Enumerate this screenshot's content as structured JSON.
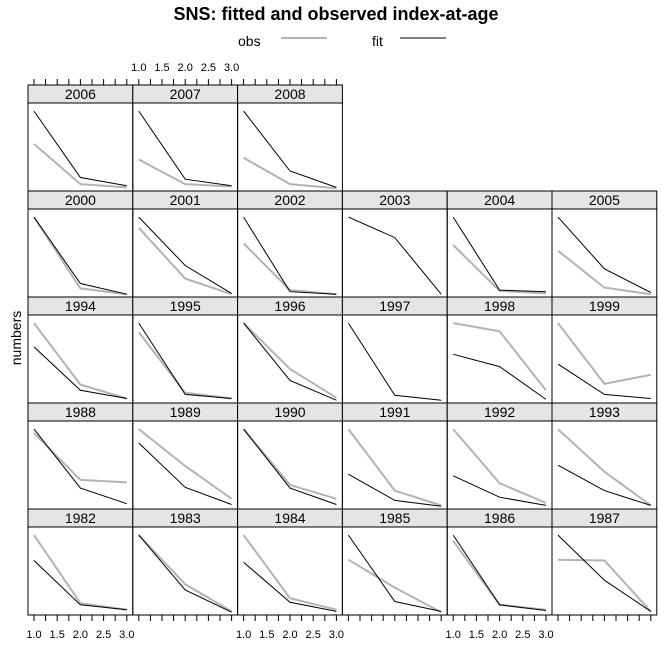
{
  "title": "SNS: fitted and observed index-at-age",
  "ylabel": "numbers",
  "legend": {
    "obs": "obs",
    "fit": "fit"
  },
  "colors": {
    "obs": "#b3b3b3",
    "fit": "#000000",
    "strip": "#e5e5e5"
  },
  "chart_data": {
    "type": "line",
    "layout": "lattice panels by year, 6 columns x 5 rows",
    "x_ticks": [
      "1.0",
      "1.5",
      "2.0",
      "2.5",
      "3.0"
    ],
    "xlim": [
      1,
      3
    ],
    "series_names": [
      "obs",
      "fit"
    ],
    "panels": [
      {
        "year": "1982",
        "col": 0,
        "row": 0,
        "obs": [
          0.95,
          0.12,
          0.04
        ],
        "fit": [
          0.64,
          0.1,
          0.04
        ]
      },
      {
        "year": "1983",
        "col": 1,
        "row": 0,
        "obs": [
          0.95,
          0.35,
          0.02
        ],
        "fit": [
          0.95,
          0.28,
          0.01
        ]
      },
      {
        "year": "1984",
        "col": 2,
        "row": 0,
        "obs": [
          0.95,
          0.18,
          0.04
        ],
        "fit": [
          0.62,
          0.13,
          0.02
        ]
      },
      {
        "year": "1985",
        "col": 3,
        "row": 0,
        "obs": [
          0.65,
          0.31,
          0.01
        ],
        "fit": [
          0.95,
          0.14,
          0.02
        ]
      },
      {
        "year": "1986",
        "col": 4,
        "row": 0,
        "obs": [
          0.88,
          0.1,
          0.04
        ],
        "fit": [
          0.95,
          0.1,
          0.03
        ]
      },
      {
        "year": "1987",
        "col": 5,
        "row": 0,
        "obs": [
          0.65,
          0.64,
          0.02
        ],
        "fit": [
          0.95,
          0.4,
          0.02
        ]
      },
      {
        "year": "1988",
        "col": 0,
        "row": 1,
        "obs": [
          0.9,
          0.33,
          0.3
        ],
        "fit": [
          0.95,
          0.23,
          0.04
        ]
      },
      {
        "year": "1989",
        "col": 1,
        "row": 1,
        "obs": [
          0.95,
          0.5,
          0.1
        ],
        "fit": [
          0.78,
          0.24,
          0.03
        ]
      },
      {
        "year": "1990",
        "col": 2,
        "row": 1,
        "obs": [
          0.95,
          0.27,
          0.1
        ],
        "fit": [
          0.95,
          0.23,
          0.03
        ]
      },
      {
        "year": "1991",
        "col": 3,
        "row": 1,
        "obs": [
          0.95,
          0.2,
          0.02
        ],
        "fit": [
          0.4,
          0.08,
          0.01
        ]
      },
      {
        "year": "1992",
        "col": 4,
        "row": 1,
        "obs": [
          0.95,
          0.29,
          0.05
        ],
        "fit": [
          0.38,
          0.12,
          0.02
        ]
      },
      {
        "year": "1993",
        "col": 5,
        "row": 1,
        "obs": [
          0.95,
          0.43,
          0.02
        ],
        "fit": [
          0.51,
          0.2,
          0.02
        ]
      },
      {
        "year": "1994",
        "col": 0,
        "row": 2,
        "obs": [
          0.95,
          0.2,
          0.03
        ],
        "fit": [
          0.66,
          0.13,
          0.03
        ]
      },
      {
        "year": "1995",
        "col": 1,
        "row": 2,
        "obs": [
          0.84,
          0.1,
          0.03
        ],
        "fit": [
          0.95,
          0.08,
          0.03
        ]
      },
      {
        "year": "1996",
        "col": 2,
        "row": 2,
        "obs": [
          0.95,
          0.39,
          0.04
        ],
        "fit": [
          0.95,
          0.25,
          0.01
        ]
      },
      {
        "year": "1997",
        "col": 3,
        "row": 2,
        "obs": [
          null,
          null,
          null
        ],
        "fit": [
          0.95,
          0.07,
          0.01
        ]
      },
      {
        "year": "1998",
        "col": 4,
        "row": 2,
        "obs": [
          0.95,
          0.85,
          0.13
        ],
        "fit": [
          0.57,
          0.42,
          0.02
        ]
      },
      {
        "year": "1999",
        "col": 5,
        "row": 2,
        "obs": [
          0.95,
          0.21,
          0.32
        ],
        "fit": [
          0.45,
          0.08,
          0.03
        ]
      },
      {
        "year": "2000",
        "col": 0,
        "row": 3,
        "obs": [
          0.95,
          0.08,
          0.01
        ],
        "fit": [
          0.95,
          0.14,
          0.01
        ]
      },
      {
        "year": "2001",
        "col": 1,
        "row": 3,
        "obs": [
          0.82,
          0.2,
          0.01
        ],
        "fit": [
          0.95,
          0.36,
          0.02
        ]
      },
      {
        "year": "2002",
        "col": 2,
        "row": 3,
        "obs": [
          0.63,
          0.06,
          0.01
        ],
        "fit": [
          0.95,
          0.04,
          0.01
        ]
      },
      {
        "year": "2003",
        "col": 3,
        "row": 3,
        "obs": [
          null,
          null,
          null
        ],
        "fit": [
          0.95,
          0.7,
          0.01
        ]
      },
      {
        "year": "2004",
        "col": 4,
        "row": 3,
        "obs": [
          0.61,
          0.05,
          0.02
        ],
        "fit": [
          0.95,
          0.06,
          0.04
        ]
      },
      {
        "year": "2005",
        "col": 5,
        "row": 3,
        "obs": [
          0.54,
          0.09,
          0.01
        ],
        "fit": [
          0.95,
          0.32,
          0.03
        ]
      },
      {
        "year": "2006",
        "col": 0,
        "row": 4,
        "obs": [
          0.55,
          0.06,
          0.02
        ],
        "fit": [
          0.95,
          0.14,
          0.04
        ]
      },
      {
        "year": "2007",
        "col": 1,
        "row": 4,
        "obs": [
          0.36,
          0.06,
          0.03
        ],
        "fit": [
          0.95,
          0.12,
          0.04
        ]
      },
      {
        "year": "2008",
        "col": 2,
        "row": 4,
        "obs": [
          0.38,
          0.06,
          0.01
        ],
        "fit": [
          0.95,
          0.22,
          0.02
        ]
      }
    ]
  }
}
